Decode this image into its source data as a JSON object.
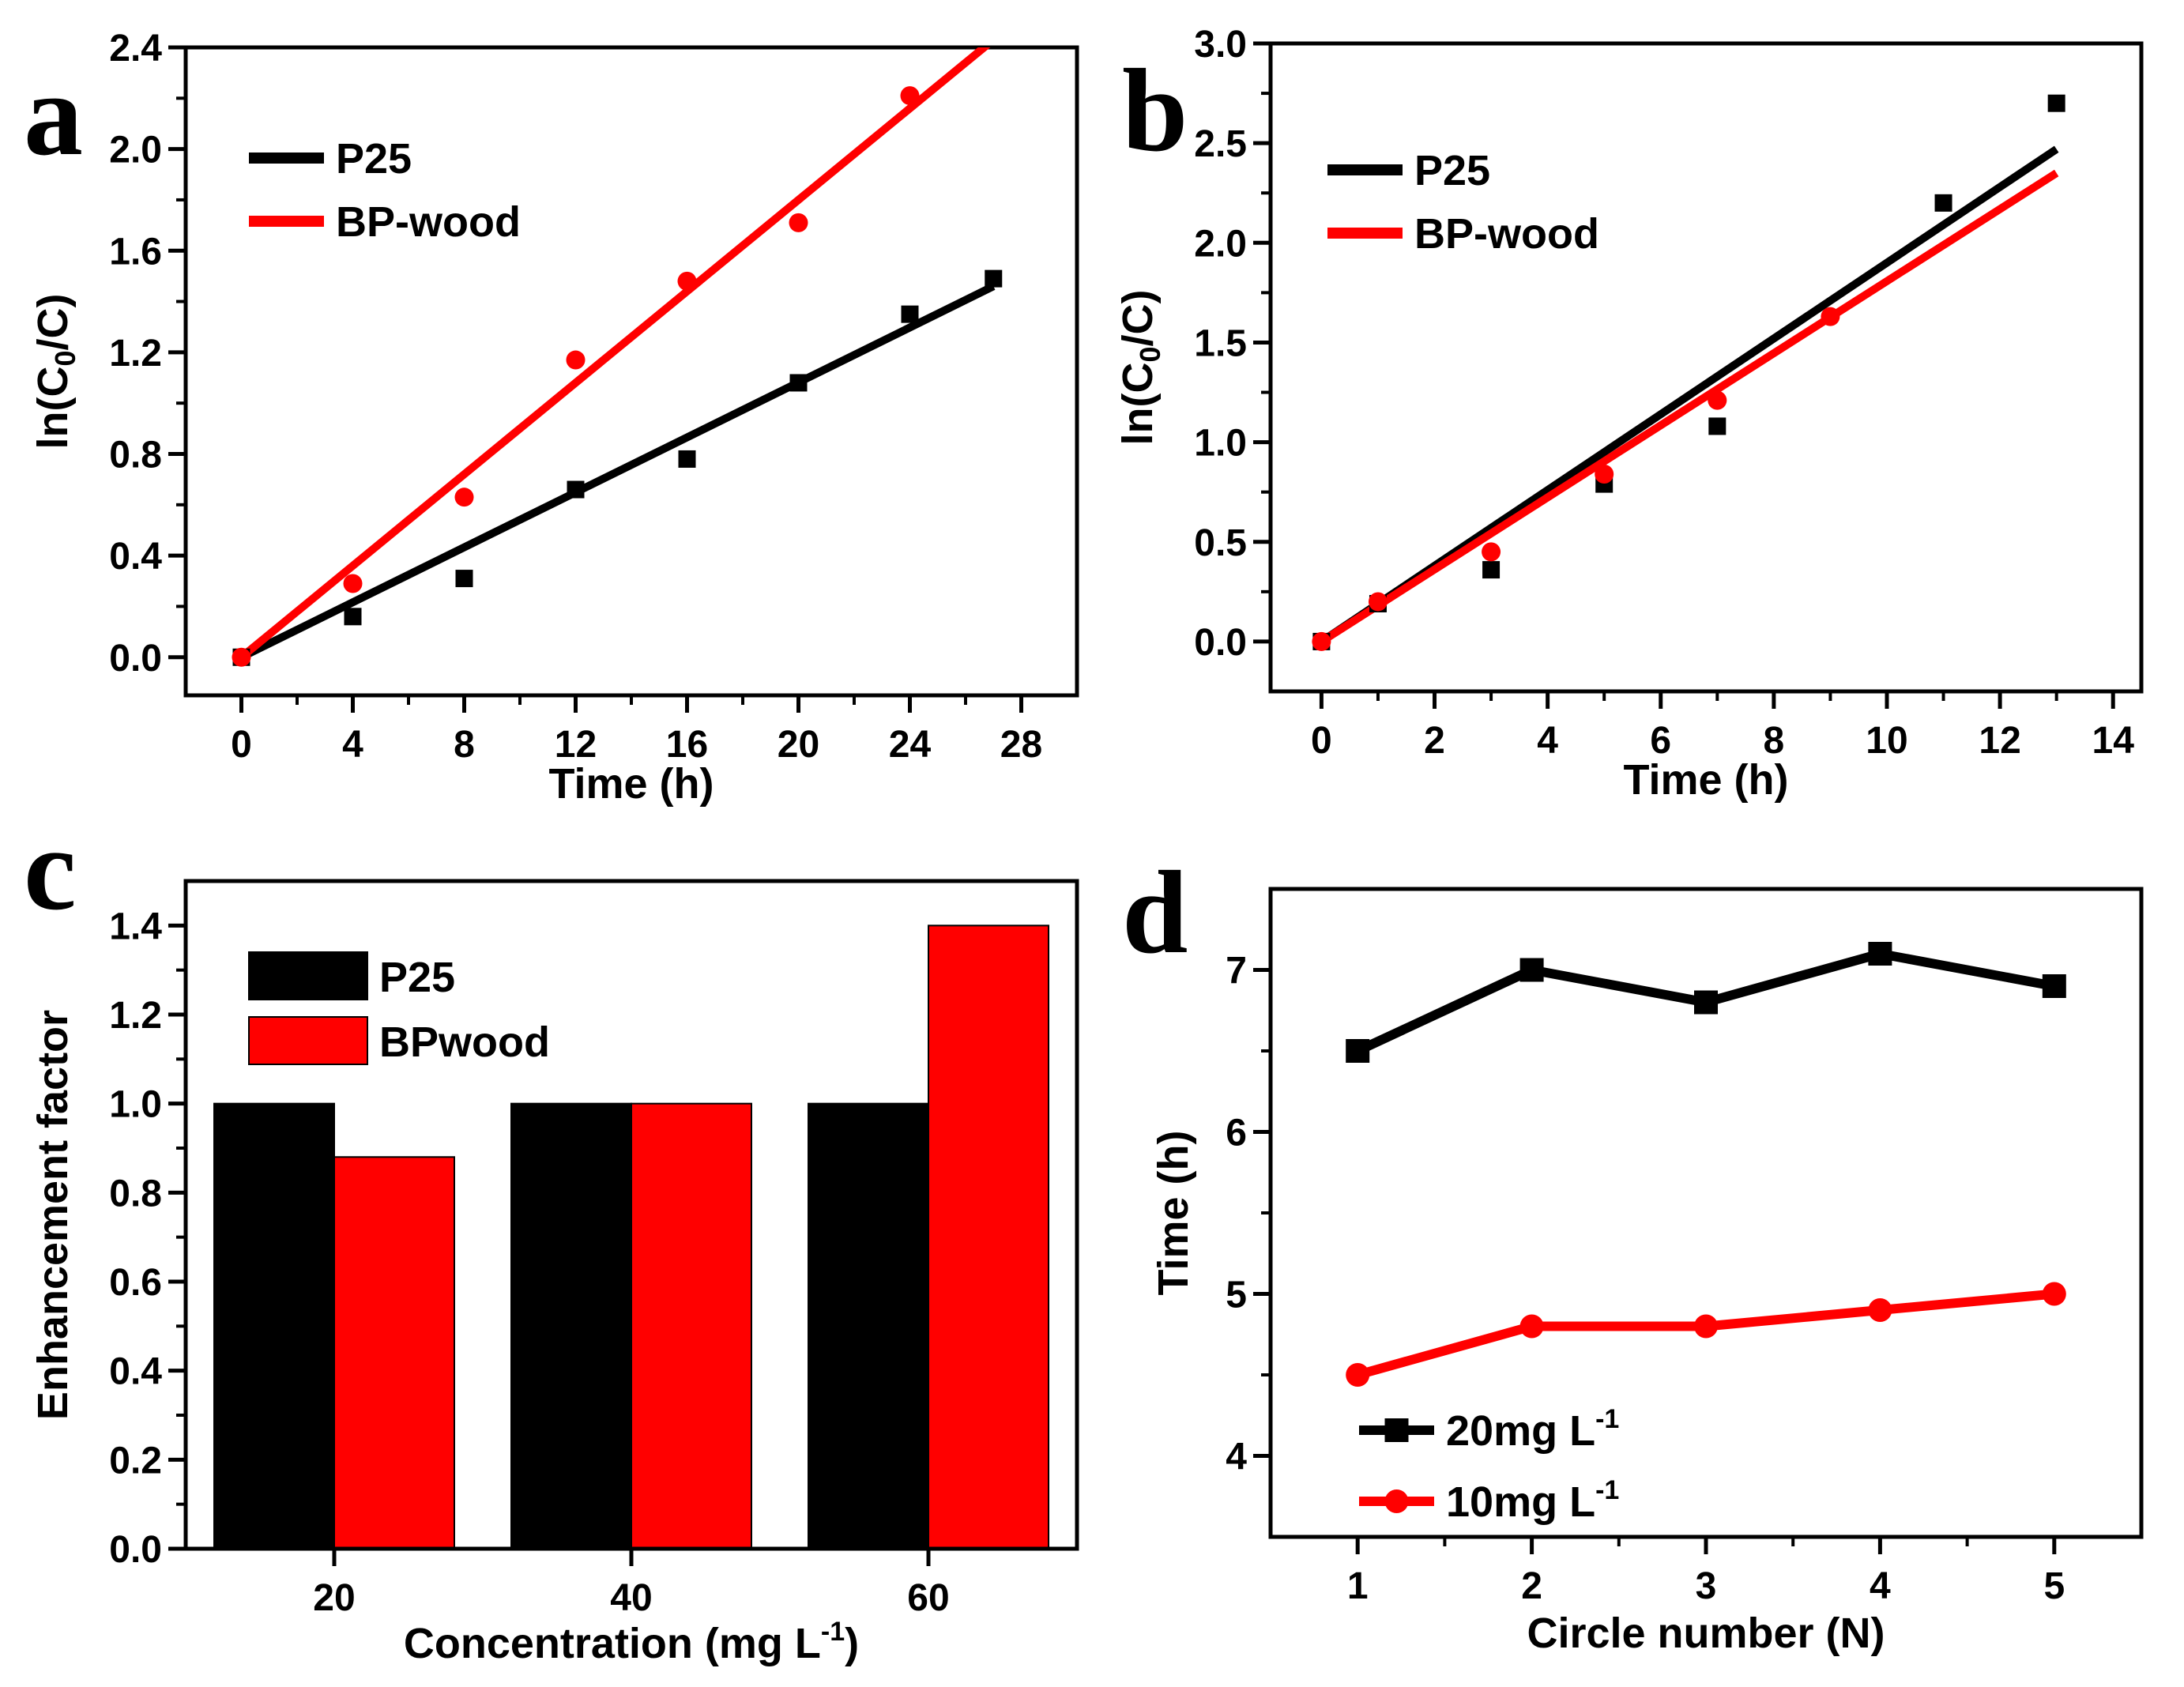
{
  "colors": {
    "p25": "#000000",
    "bpwood": "#ff0000"
  },
  "chart_data": [
    {
      "panel": "a",
      "type": "scatter",
      "xlabel": "Time (h)",
      "ylabel_parts": [
        "ln(C",
        "0",
        "/C)"
      ],
      "xlim": [
        -2,
        30
      ],
      "ylim": [
        -0.15,
        2.4
      ],
      "xticks": [
        0,
        4,
        8,
        12,
        16,
        20,
        24,
        28
      ],
      "yticks": [
        0.0,
        0.4,
        0.8,
        1.2,
        1.6,
        2.0,
        2.4
      ],
      "ytick_labels": [
        "0.0",
        "0.4",
        "0.8",
        "1.2",
        "1.6",
        "2.0",
        "2.4"
      ],
      "legend": {
        "position": "top-left",
        "entries": [
          "P25",
          "BP-wood"
        ]
      },
      "series": [
        {
          "name": "P25",
          "marker": "square",
          "color": "#000000",
          "x": [
            0,
            4,
            8,
            12,
            16,
            20,
            24,
            27
          ],
          "y": [
            0.0,
            0.16,
            0.31,
            0.66,
            0.78,
            1.08,
            1.35,
            1.49
          ],
          "fit": {
            "x": [
              0,
              27
            ],
            "y": [
              0.0,
              1.46
            ]
          }
        },
        {
          "name": "BP-wood",
          "marker": "circle",
          "color": "#ff0000",
          "x": [
            0,
            4,
            8,
            12,
            16,
            20,
            24
          ],
          "y": [
            0.0,
            0.29,
            0.63,
            1.17,
            1.48,
            1.71,
            2.21
          ],
          "fit": {
            "x": [
              0,
              27
            ],
            "y": [
              0.0,
              2.43
            ]
          }
        }
      ]
    },
    {
      "panel": "b",
      "type": "scatter",
      "xlabel": "Time (h)",
      "ylabel_parts": [
        "ln(C",
        "0",
        "/C)"
      ],
      "xlim": [
        -0.9,
        14.5
      ],
      "ylim": [
        -0.25,
        3.0
      ],
      "xticks": [
        0,
        2,
        4,
        6,
        8,
        10,
        12,
        14
      ],
      "yticks": [
        0.0,
        0.5,
        1.0,
        1.5,
        2.0,
        2.5,
        3.0
      ],
      "ytick_labels": [
        "0.0",
        "0.5",
        "1.0",
        "1.5",
        "2.0",
        "2.5",
        "3.0"
      ],
      "legend": {
        "position": "top-left",
        "entries": [
          "P25",
          "BP-wood"
        ]
      },
      "series": [
        {
          "name": "P25",
          "marker": "square",
          "color": "#000000",
          "x": [
            0,
            1,
            3,
            5,
            7,
            11,
            13
          ],
          "y": [
            0.0,
            0.19,
            0.36,
            0.79,
            1.08,
            2.2,
            2.7
          ],
          "fit": {
            "x": [
              0,
              13
            ],
            "y": [
              0.0,
              2.47
            ]
          }
        },
        {
          "name": "BP-wood",
          "marker": "circle",
          "color": "#ff0000",
          "x": [
            0,
            1,
            3,
            5,
            7,
            9
          ],
          "y": [
            0.0,
            0.2,
            0.45,
            0.84,
            1.21,
            1.63
          ],
          "fit": {
            "x": [
              0,
              13
            ],
            "y": [
              0.0,
              2.35
            ]
          }
        }
      ]
    },
    {
      "panel": "c",
      "type": "bar",
      "xlabel_parts": [
        "Concentration (mg L",
        "-1",
        ")"
      ],
      "ylabel": "Enhancement factor",
      "categories": [
        "20",
        "40",
        "60"
      ],
      "ylim": [
        0.0,
        1.5
      ],
      "yticks": [
        0.0,
        0.2,
        0.4,
        0.6,
        0.8,
        1.0,
        1.2,
        1.4
      ],
      "ytick_labels": [
        "0.0",
        "0.2",
        "0.4",
        "0.6",
        "0.8",
        "1.0",
        "1.2",
        "1.4"
      ],
      "legend": {
        "position": "top-left",
        "entries": [
          "P25",
          "BPwood"
        ]
      },
      "series": [
        {
          "name": "P25",
          "color": "#000000",
          "values": [
            1.0,
            1.0,
            1.0
          ]
        },
        {
          "name": "BPwood",
          "color": "#ff0000",
          "values": [
            0.88,
            1.0,
            1.4
          ]
        }
      ]
    },
    {
      "panel": "d",
      "type": "line",
      "xlabel": "Circle number (N)",
      "ylabel": "Time (h)",
      "xlim": [
        0.5,
        5.5
      ],
      "ylim": [
        3.5,
        7.5
      ],
      "xticks": [
        1,
        2,
        3,
        4,
        5
      ],
      "yticks": [
        4,
        5,
        6,
        7
      ],
      "ytick_labels": [
        "4",
        "5",
        "6",
        "7"
      ],
      "legend": {
        "position": "bottom-left",
        "entries": [
          "20mg L-1",
          "10mg L-1"
        ]
      },
      "series": [
        {
          "name": "20mg L-1",
          "label": "20mg L",
          "sup": "-1",
          "marker": "square",
          "color": "#000000",
          "x": [
            1,
            2,
            3,
            4,
            5
          ],
          "y": [
            6.5,
            7.0,
            6.8,
            7.1,
            6.9
          ]
        },
        {
          "name": "10mg L-1",
          "label": "10mg L",
          "sup": "-1",
          "marker": "circle",
          "color": "#ff0000",
          "x": [
            1,
            2,
            3,
            4,
            5
          ],
          "y": [
            4.5,
            4.8,
            4.8,
            4.9,
            5.0
          ]
        }
      ]
    }
  ],
  "panels": {
    "a": "a",
    "b": "b",
    "c": "c",
    "d": "d"
  }
}
